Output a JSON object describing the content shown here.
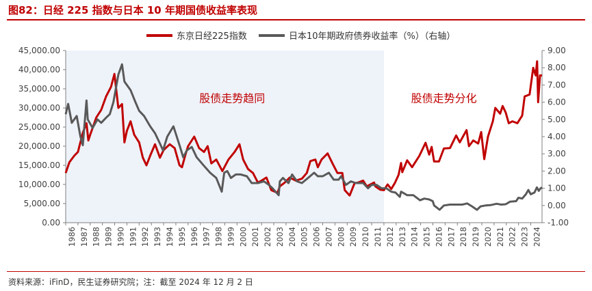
{
  "figure": {
    "title": "图82：日经 225 指数与日本 10 年期国债收益率表现",
    "source": "资料来源：iFinD，民生证券研究院；注：截至 2024 年 12 月 2 日"
  },
  "colors": {
    "nikkei": "#c00000",
    "jgb": "#595959",
    "shade": "#eef2f9",
    "title": "#c00000"
  },
  "chart_data": {
    "type": "line",
    "legend": {
      "position": "top",
      "entries": [
        "东京日经225指数",
        "日本10年期政府债券收益率（%）（右轴）"
      ]
    },
    "annotations": [
      {
        "text": "股债走势趋同",
        "year": 1999.6,
        "value_right": 6.0,
        "color": "#c00000"
      },
      {
        "text": "股债走势分化",
        "year": 2016.9,
        "value_right": 6.0,
        "color": "#c00000"
      }
    ],
    "shaded_region": {
      "from": 1986.0,
      "to": 2012.0
    },
    "x_tick_labels": [
      "1986",
      "1987",
      "1988",
      "1989",
      "1990",
      "1991",
      "1992",
      "1993",
      "1994",
      "1995",
      "1996",
      "1997",
      "1998",
      "1999",
      "2000",
      "2001",
      "2002",
      "2003",
      "2004",
      "2005",
      "2006",
      "2007",
      "2008",
      "2009",
      "2010",
      "2011",
      "2012",
      "2013",
      "2014",
      "2015",
      "2016",
      "2017",
      "2018",
      "2019",
      "2020",
      "2021",
      "2022",
      "2023",
      "2024"
    ],
    "x_range": [
      1986.0,
      2024.92
    ],
    "y_left": {
      "min": 0,
      "max": 45000,
      "step": 5000,
      "tick_labels": [
        "0.00",
        "5,000.00",
        "10,000.00",
        "15,000.00",
        "20,000.00",
        "25,000.00",
        "30,000.00",
        "35,000.00",
        "40,000.00",
        "45,000.00"
      ]
    },
    "y_right": {
      "min": -1,
      "max": 9,
      "step": 1,
      "tick_labels": [
        "-1.00",
        "0.00",
        "1.00",
        "2.00",
        "3.00",
        "4.00",
        "5.00",
        "6.00",
        "7.00",
        "8.00",
        "9.00"
      ]
    },
    "series": [
      {
        "name": "东京日经225指数",
        "axis": "left",
        "points": [
          [
            1986.0,
            13000
          ],
          [
            1986.3,
            15800
          ],
          [
            1986.7,
            17500
          ],
          [
            1987.0,
            18500
          ],
          [
            1987.4,
            23500
          ],
          [
            1987.7,
            26000
          ],
          [
            1987.85,
            21500
          ],
          [
            1988.0,
            23000
          ],
          [
            1988.5,
            27500
          ],
          [
            1988.9,
            29500
          ],
          [
            1989.3,
            33000
          ],
          [
            1989.7,
            35500
          ],
          [
            1989.98,
            38900
          ],
          [
            1990.3,
            30000
          ],
          [
            1990.6,
            31000
          ],
          [
            1990.8,
            21000
          ],
          [
            1991.0,
            24000
          ],
          [
            1991.3,
            26500
          ],
          [
            1991.6,
            23000
          ],
          [
            1992.0,
            21000
          ],
          [
            1992.3,
            17000
          ],
          [
            1992.6,
            15000
          ],
          [
            1992.9,
            17500
          ],
          [
            1993.3,
            20500
          ],
          [
            1993.7,
            17000
          ],
          [
            1994.0,
            19000
          ],
          [
            1994.5,
            20500
          ],
          [
            1994.9,
            19500
          ],
          [
            1995.3,
            15000
          ],
          [
            1995.5,
            14500
          ],
          [
            1995.8,
            18000
          ],
          [
            1996.0,
            20000
          ],
          [
            1996.5,
            22500
          ],
          [
            1996.9,
            19500
          ],
          [
            1997.3,
            18500
          ],
          [
            1997.6,
            20000
          ],
          [
            1997.9,
            15500
          ],
          [
            1998.3,
            16500
          ],
          [
            1998.8,
            13500
          ],
          [
            1999.3,
            16500
          ],
          [
            1999.8,
            18500
          ],
          [
            2000.2,
            20500
          ],
          [
            2000.5,
            16500
          ],
          [
            2000.9,
            14000
          ],
          [
            2001.3,
            13000
          ],
          [
            2001.7,
            10500
          ],
          [
            2002.0,
            11000
          ],
          [
            2002.4,
            11800
          ],
          [
            2002.8,
            8500
          ],
          [
            2003.3,
            7800
          ],
          [
            2003.5,
            9500
          ],
          [
            2003.9,
            10500
          ],
          [
            2004.3,
            11800
          ],
          [
            2004.8,
            11000
          ],
          [
            2005.3,
            11500
          ],
          [
            2005.7,
            13000
          ],
          [
            2005.99,
            16100
          ],
          [
            2006.4,
            16500
          ],
          [
            2006.6,
            14500
          ],
          [
            2006.9,
            16500
          ],
          [
            2007.4,
            18100
          ],
          [
            2007.8,
            15500
          ],
          [
            2008.2,
            13000
          ],
          [
            2008.6,
            13000
          ],
          [
            2008.8,
            8500
          ],
          [
            2009.2,
            7100
          ],
          [
            2009.6,
            10300
          ],
          [
            2009.9,
            10500
          ],
          [
            2010.3,
            11000
          ],
          [
            2010.6,
            9500
          ],
          [
            2010.9,
            10000
          ],
          [
            2011.2,
            10500
          ],
          [
            2011.3,
            9500
          ],
          [
            2011.7,
            8600
          ],
          [
            2012.0,
            8500
          ],
          [
            2012.3,
            10000
          ],
          [
            2012.6,
            8800
          ],
          [
            2012.9,
            10400
          ],
          [
            2013.2,
            12500
          ],
          [
            2013.4,
            15600
          ],
          [
            2013.5,
            13200
          ],
          [
            2013.9,
            16300
          ],
          [
            2014.3,
            14500
          ],
          [
            2014.9,
            17500
          ],
          [
            2015.4,
            20900
          ],
          [
            2015.7,
            17800
          ],
          [
            2015.9,
            19800
          ],
          [
            2016.1,
            16000
          ],
          [
            2016.5,
            16000
          ],
          [
            2016.9,
            19400
          ],
          [
            2017.4,
            19500
          ],
          [
            2017.9,
            22800
          ],
          [
            2018.2,
            21000
          ],
          [
            2018.75,
            24200
          ],
          [
            2018.95,
            20000
          ],
          [
            2019.3,
            21500
          ],
          [
            2019.7,
            20700
          ],
          [
            2019.95,
            23700
          ],
          [
            2020.2,
            16600
          ],
          [
            2020.5,
            22500
          ],
          [
            2020.9,
            26500
          ],
          [
            2021.1,
            30000
          ],
          [
            2021.5,
            28500
          ],
          [
            2021.7,
            30500
          ],
          [
            2021.95,
            28800
          ],
          [
            2022.2,
            26000
          ],
          [
            2022.5,
            26500
          ],
          [
            2022.9,
            26000
          ],
          [
            2023.3,
            28000
          ],
          [
            2023.5,
            33000
          ],
          [
            2023.9,
            33500
          ],
          [
            2024.2,
            40500
          ],
          [
            2024.4,
            38500
          ],
          [
            2024.52,
            42200
          ],
          [
            2024.6,
            31500
          ],
          [
            2024.75,
            38500
          ],
          [
            2024.92,
            38500
          ]
        ]
      },
      {
        "name": "日本10年期政府债券收益率（%）（右轴）",
        "axis": "right",
        "points": [
          [
            1986.0,
            5.3
          ],
          [
            1986.2,
            5.9
          ],
          [
            1986.5,
            4.8
          ],
          [
            1986.9,
            5.2
          ],
          [
            1987.2,
            4.0
          ],
          [
            1987.4,
            3.5
          ],
          [
            1987.7,
            6.1
          ],
          [
            1987.8,
            5.0
          ],
          [
            1988.2,
            4.5
          ],
          [
            1988.6,
            5.0
          ],
          [
            1988.9,
            4.8
          ],
          [
            1989.3,
            5.1
          ],
          [
            1989.6,
            5.3
          ],
          [
            1989.9,
            6.0
          ],
          [
            1990.3,
            7.6
          ],
          [
            1990.6,
            8.2
          ],
          [
            1990.8,
            7.2
          ],
          [
            1991.3,
            6.7
          ],
          [
            1991.7,
            6.0
          ],
          [
            1992.0,
            5.5
          ],
          [
            1992.4,
            5.2
          ],
          [
            1992.9,
            4.6
          ],
          [
            1993.3,
            4.2
          ],
          [
            1993.7,
            3.6
          ],
          [
            1993.95,
            3.2
          ],
          [
            1994.3,
            4.0
          ],
          [
            1994.8,
            4.6
          ],
          [
            1995.3,
            3.5
          ],
          [
            1995.6,
            2.8
          ],
          [
            1995.9,
            3.2
          ],
          [
            1996.3,
            3.4
          ],
          [
            1996.7,
            2.8
          ],
          [
            1997.3,
            2.3
          ],
          [
            1997.8,
            1.9
          ],
          [
            1998.3,
            1.6
          ],
          [
            1998.75,
            0.8
          ],
          [
            1998.95,
            1.9
          ],
          [
            1999.2,
            2.0
          ],
          [
            1999.5,
            1.6
          ],
          [
            1999.9,
            1.8
          ],
          [
            2000.3,
            1.8
          ],
          [
            2000.8,
            1.7
          ],
          [
            2001.2,
            1.3
          ],
          [
            2001.7,
            1.3
          ],
          [
            2002.2,
            1.4
          ],
          [
            2002.6,
            1.2
          ],
          [
            2002.9,
            1.0
          ],
          [
            2003.4,
            0.6
          ],
          [
            2003.5,
            1.4
          ],
          [
            2003.75,
            1.6
          ],
          [
            2004.2,
            1.3
          ],
          [
            2004.5,
            1.8
          ],
          [
            2004.9,
            1.4
          ],
          [
            2005.3,
            1.3
          ],
          [
            2005.8,
            1.6
          ],
          [
            2006.3,
            1.9
          ],
          [
            2006.6,
            1.7
          ],
          [
            2007.0,
            1.7
          ],
          [
            2007.5,
            1.9
          ],
          [
            2007.9,
            1.5
          ],
          [
            2008.3,
            1.5
          ],
          [
            2008.5,
            1.7
          ],
          [
            2008.9,
            1.2
          ],
          [
            2009.3,
            1.4
          ],
          [
            2009.7,
            1.3
          ],
          [
            2010.3,
            1.3
          ],
          [
            2010.7,
            1.0
          ],
          [
            2011.0,
            1.2
          ],
          [
            2011.4,
            1.2
          ],
          [
            2011.8,
            1.0
          ],
          [
            2012.2,
            1.0
          ],
          [
            2012.6,
            0.8
          ],
          [
            2012.95,
            0.75
          ],
          [
            2013.3,
            0.5
          ],
          [
            2013.4,
            0.8
          ],
          [
            2013.9,
            0.6
          ],
          [
            2014.4,
            0.6
          ],
          [
            2014.95,
            0.3
          ],
          [
            2015.3,
            0.4
          ],
          [
            2015.7,
            0.35
          ],
          [
            2015.99,
            0.25
          ],
          [
            2016.1,
            0.0
          ],
          [
            2016.55,
            -0.25
          ],
          [
            2016.9,
            0.0
          ],
          [
            2017.4,
            0.05
          ],
          [
            2017.9,
            0.05
          ],
          [
            2018.4,
            0.05
          ],
          [
            2018.8,
            0.12
          ],
          [
            2019.2,
            -0.05
          ],
          [
            2019.6,
            -0.25
          ],
          [
            2019.9,
            -0.05
          ],
          [
            2020.3,
            0.0
          ],
          [
            2020.7,
            0.02
          ],
          [
            2021.2,
            0.1
          ],
          [
            2021.6,
            0.05
          ],
          [
            2021.95,
            0.07
          ],
          [
            2022.3,
            0.22
          ],
          [
            2022.8,
            0.25
          ],
          [
            2022.99,
            0.45
          ],
          [
            2023.3,
            0.4
          ],
          [
            2023.6,
            0.65
          ],
          [
            2023.8,
            0.9
          ],
          [
            2024.0,
            0.65
          ],
          [
            2024.3,
            0.75
          ],
          [
            2024.5,
            1.05
          ],
          [
            2024.65,
            0.85
          ],
          [
            2024.8,
            1.0
          ],
          [
            2024.92,
            1.05
          ]
        ]
      }
    ]
  }
}
